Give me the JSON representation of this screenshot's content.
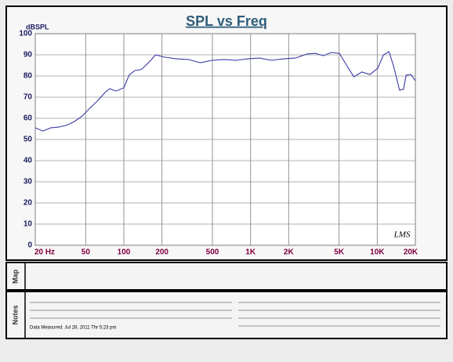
{
  "chart_data": {
    "type": "line",
    "title": "SPL vs Freq",
    "y_label": "dBSPL",
    "annotation": "LMS",
    "x": [
      20,
      23,
      26.6,
      30.7,
      35.3,
      40.7,
      47,
      54,
      62.6,
      72,
      77.5,
      86.5,
      100,
      110,
      122,
      137,
      159,
      178,
      210,
      260,
      323,
      400,
      497,
      617,
      766,
      950,
      1180,
      1460,
      1820,
      2250,
      2800,
      3240,
      3750,
      4340,
      5030,
      5820,
      6540,
      7560,
      8750,
      10100,
      11200,
      12400,
      13500,
      15000,
      16100,
      16900,
      18400,
      20000
    ],
    "series": [
      {
        "name": "SPL",
        "color": "#3a3aa8",
        "values": [
          55.5,
          54,
          55.5,
          55.9,
          56.7,
          58.5,
          61.1,
          64.8,
          68.5,
          72.6,
          74,
          72.9,
          74.4,
          80.4,
          82.6,
          83,
          86.7,
          90,
          88.9,
          88.1,
          87.8,
          86.3,
          87.4,
          87.8,
          87.4,
          88.1,
          88.5,
          87.4,
          88.1,
          88.5,
          90.4,
          90.7,
          89.6,
          91.1,
          90.7,
          84.4,
          79.6,
          81.9,
          80.7,
          83.7,
          90,
          91.5,
          84.4,
          73.3,
          73.7,
          80.4,
          80.7,
          77.8
        ]
      }
    ],
    "log_x": true,
    "xlim": [
      20,
      20000
    ],
    "xticks": [
      {
        "value": 20,
        "label": "20 Hz"
      },
      50,
      100,
      200,
      500,
      {
        "value": 1000,
        "label": "1K"
      },
      {
        "value": 2000,
        "label": "2K"
      },
      {
        "value": 5000,
        "label": "5K"
      },
      {
        "value": 10000,
        "label": "10K"
      },
      {
        "value": 20000,
        "label": "20K"
      }
    ],
    "ylim": [
      0,
      100
    ],
    "yticks": [
      0,
      10,
      20,
      30,
      40,
      50,
      60,
      70,
      80,
      90,
      100
    ],
    "grid": true
  },
  "map": {
    "label": "Map"
  },
  "notes": {
    "label": "Notes",
    "data_measured": "Data Measured: Jul 28, 2011 Thr 5:23 pm"
  }
}
